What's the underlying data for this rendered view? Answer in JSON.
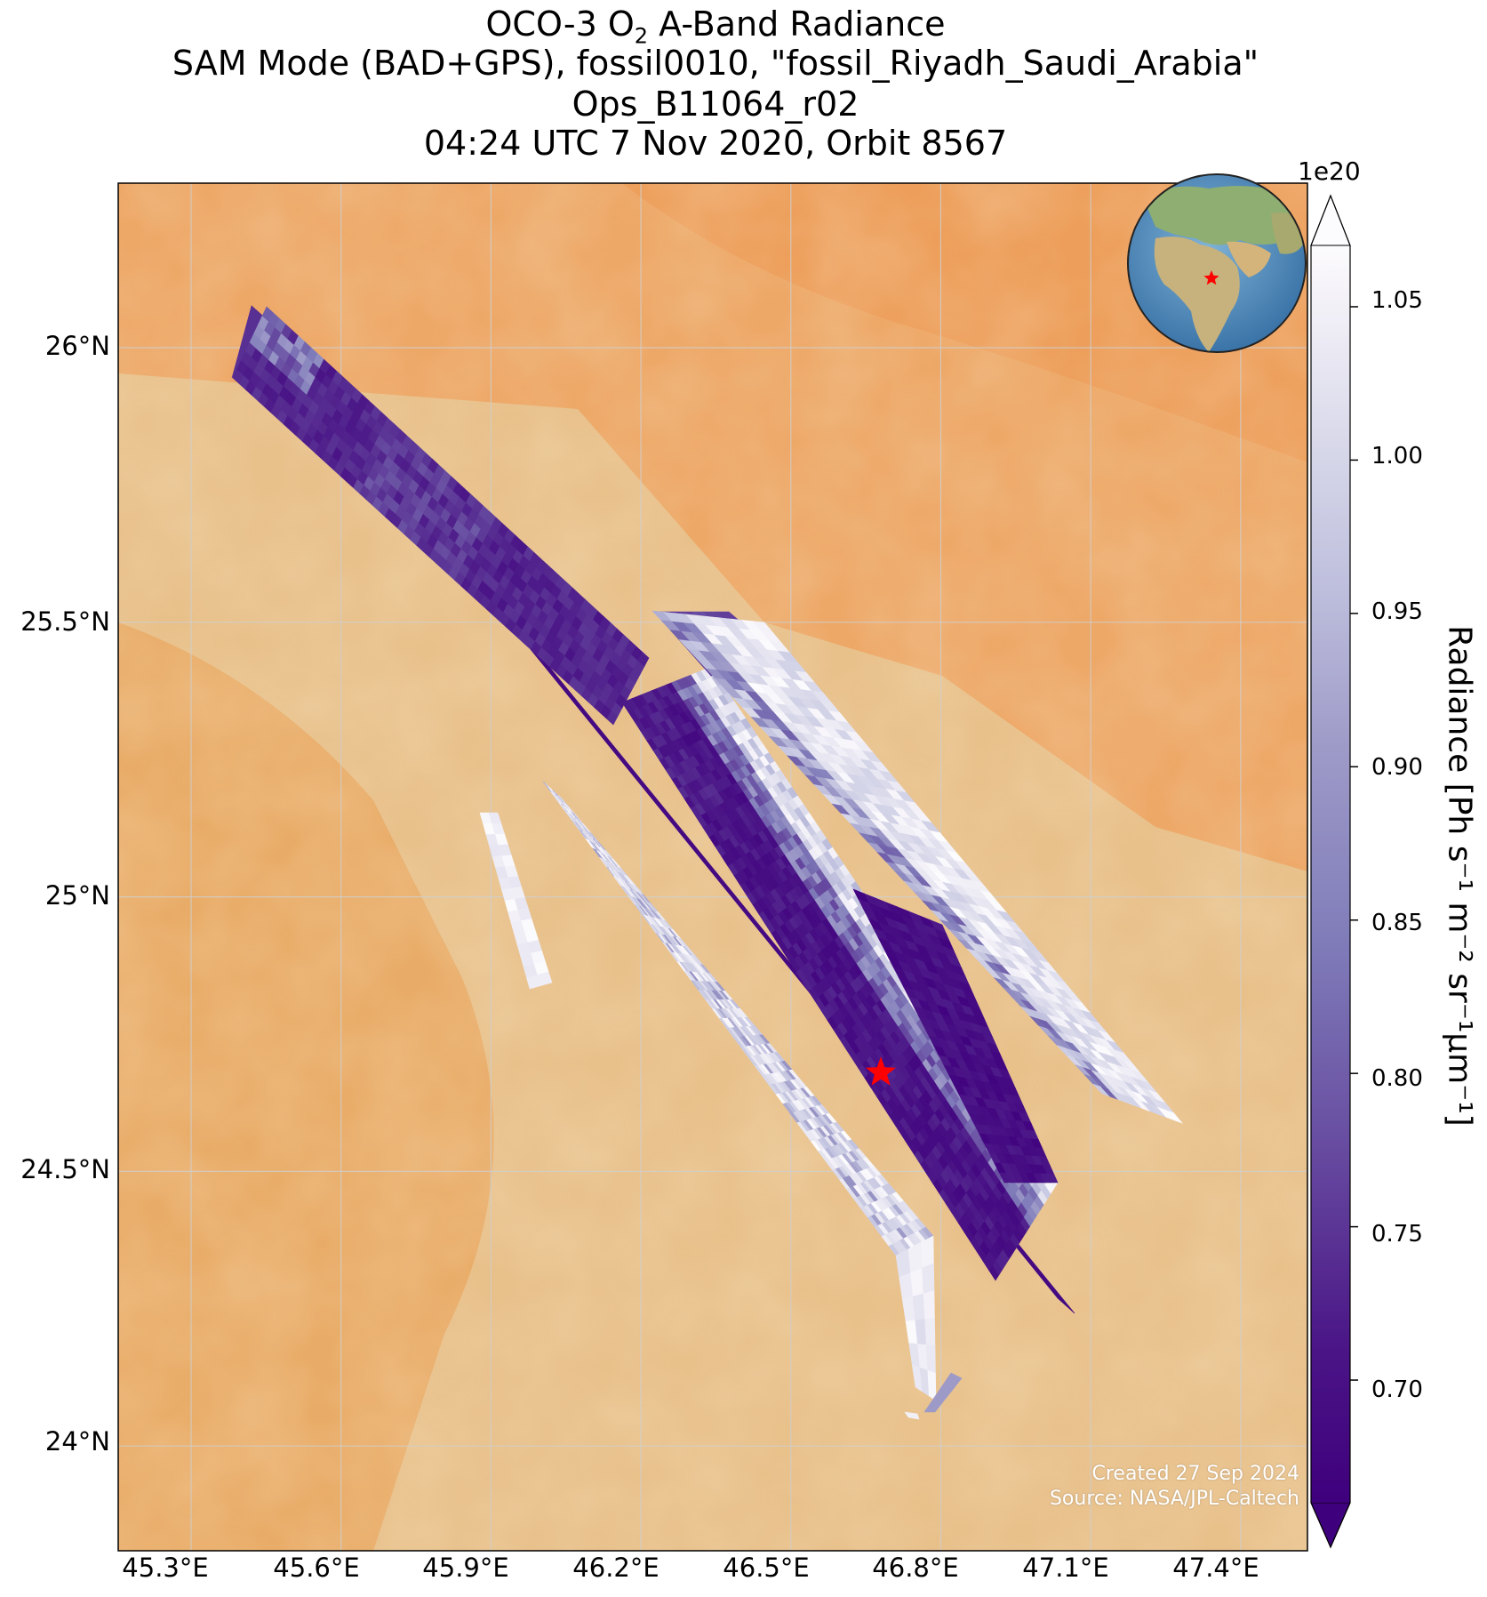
{
  "title": {
    "line1_prefix": "OCO-3 O",
    "line1_sub": "2",
    "line1_suffix": " A-Band Radiance",
    "line2": "SAM Mode (BAD+GPS), fossil0010, \"fossil_Riyadh_Saudi_Arabia\"",
    "line3": "Ops_B11064_r02",
    "line4": "04:24 UTC 7 Nov 2020, Orbit 8567"
  },
  "map": {
    "lon_ticks": [
      "45.3°E",
      "45.6°E",
      "45.9°E",
      "46.2°E",
      "46.5°E",
      "46.8°E",
      "47.1°E",
      "47.4°E"
    ],
    "lat_ticks": [
      "26°N",
      "25.5°N",
      "25°N",
      "24.5°N",
      "24°N"
    ],
    "target_marker": {
      "lon": 46.68,
      "lat": 24.68,
      "color": "#ff0000"
    },
    "basemap_colors": {
      "desert": "#eda766",
      "plain": "#e6bb80",
      "dunes": "#e8903f"
    },
    "credit_line1": "Created 27 Sep 2024",
    "credit_line2": "Source: NASA/JPL-Caltech",
    "inset_globe": "globe-inset-europe-africa"
  },
  "colorbar": {
    "exponent": "1e20",
    "ticks": [
      "1.05",
      "1.00",
      "0.95",
      "0.90",
      "0.85",
      "0.80",
      "0.75",
      "0.70"
    ],
    "tick_values": [
      1.05,
      1.0,
      0.95,
      0.9,
      0.85,
      0.8,
      0.75,
      0.7
    ],
    "range": [
      0.66,
      1.07
    ],
    "extend": "both",
    "colormap": "Purples_r",
    "label": "Radiance [Ph s⁻¹ m⁻² sr⁻¹μm⁻¹]"
  }
}
